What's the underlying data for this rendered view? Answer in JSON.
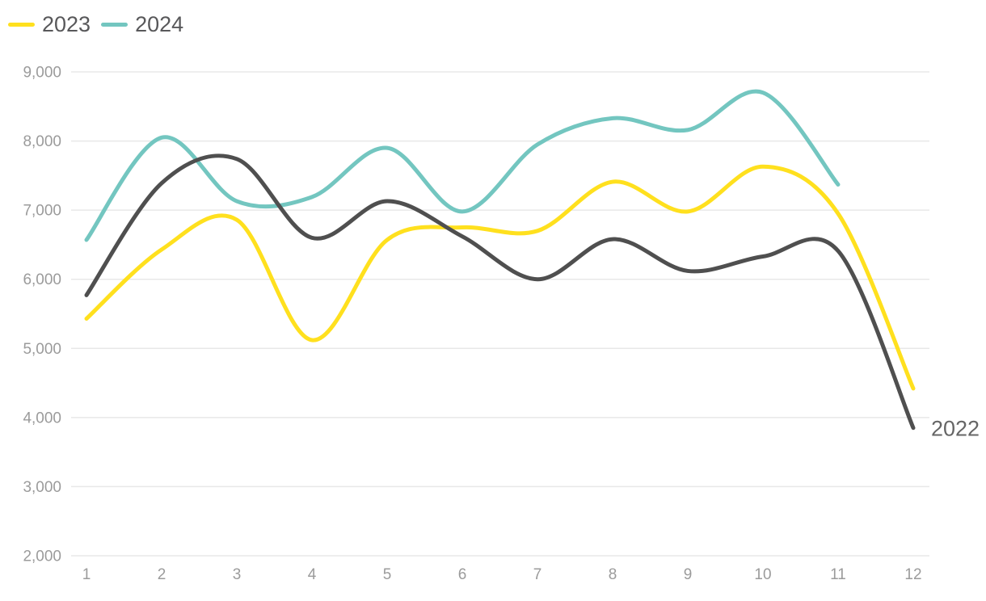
{
  "chart_data": {
    "type": "line",
    "title": "",
    "x": [
      1,
      2,
      3,
      4,
      5,
      6,
      7,
      8,
      9,
      10,
      11,
      12
    ],
    "xtick_labels": [
      "1",
      "2",
      "3",
      "4",
      "5",
      "6",
      "7",
      "8",
      "9",
      "10",
      "11",
      "12"
    ],
    "yticks": [
      2000,
      3000,
      4000,
      5000,
      6000,
      7000,
      8000,
      9000
    ],
    "ytick_labels": [
      "2,000",
      "3,000",
      "4,000",
      "5,000",
      "6,000",
      "7,000",
      "8,000",
      "9,000"
    ],
    "ylim": [
      2000,
      9000
    ],
    "grid": "horizontal",
    "legend_position": "top-left",
    "smooth": true,
    "series": [
      {
        "name": "2024",
        "color": "#73c6c0",
        "in_legend": true,
        "values": [
          6570,
          8050,
          7130,
          7190,
          7900,
          6980,
          7950,
          8330,
          8160,
          8700,
          7370,
          null
        ]
      },
      {
        "name": "2023",
        "color": "#ffe01e",
        "in_legend": true,
        "values": [
          5430,
          6430,
          6860,
          5120,
          6570,
          6750,
          6700,
          7410,
          6980,
          7630,
          6950,
          4420
        ]
      },
      {
        "name": "2022",
        "color": "#4f4f4f",
        "in_legend": false,
        "end_label": "2022",
        "values": [
          5770,
          7390,
          7740,
          6600,
          7130,
          6620,
          6000,
          6580,
          6120,
          6330,
          6410,
          3850
        ]
      }
    ]
  },
  "legend": {
    "items": [
      {
        "label": "2023",
        "color": "#ffe01e"
      },
      {
        "label": "2024",
        "color": "#73c6c0"
      }
    ]
  },
  "colors": {
    "background": "#ffffff",
    "gridline": "#e8e8e8",
    "axis_text": "#9b9b9b",
    "legend_text": "#58585a",
    "end_label_text": "#666666"
  }
}
